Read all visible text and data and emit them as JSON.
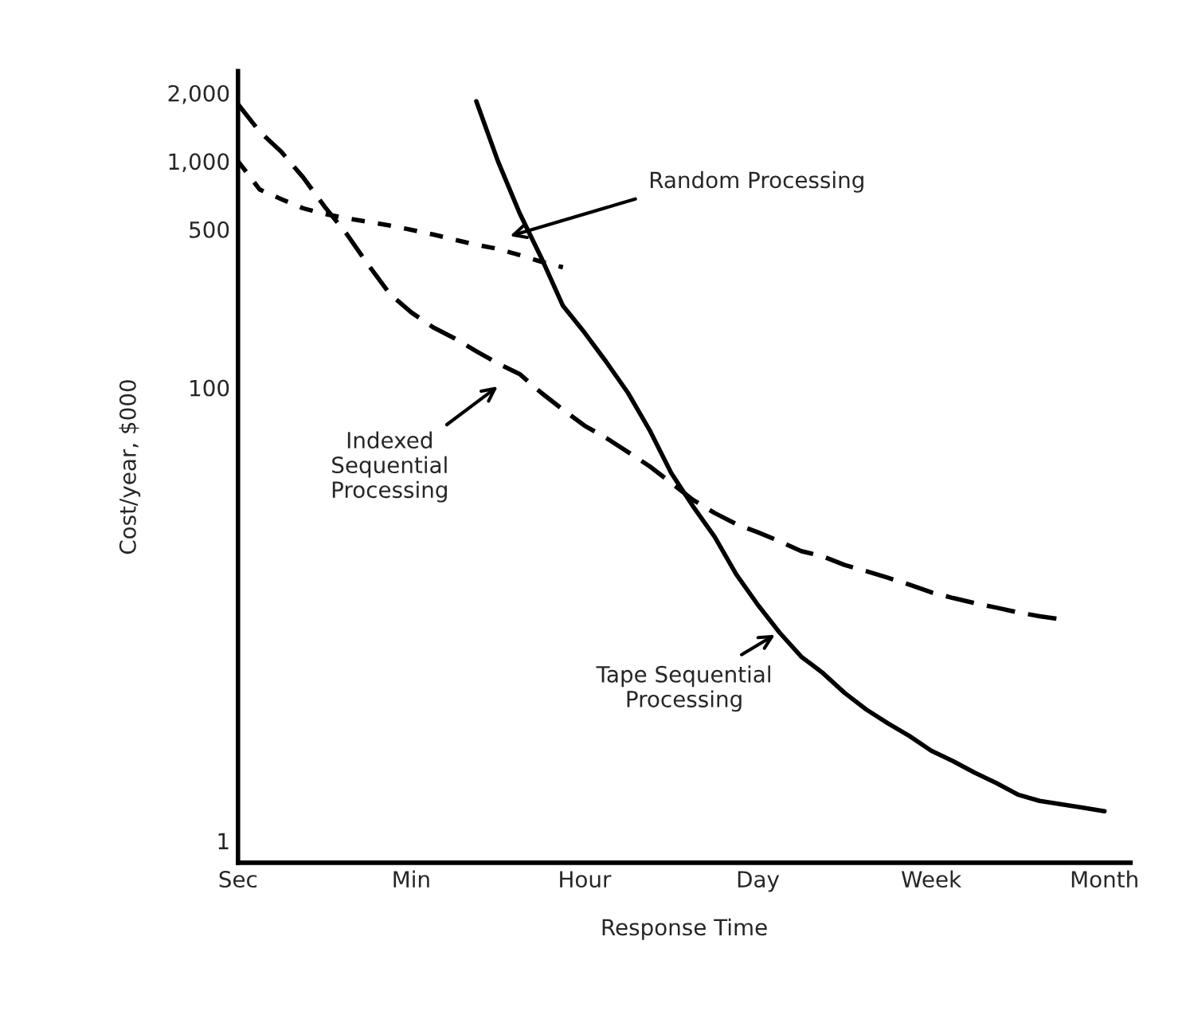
{
  "chart_data": {
    "type": "line",
    "xlabel": "Response Time",
    "ylabel": "Cost/year, $000",
    "log": "y",
    "grid": false,
    "marker": "none",
    "categories": [
      "Sec",
      null,
      null,
      null,
      null,
      null,
      null,
      null,
      "Min",
      null,
      null,
      null,
      null,
      null,
      null,
      null,
      "Hour",
      null,
      null,
      null,
      null,
      null,
      null,
      null,
      "Day",
      null,
      null,
      null,
      null,
      null,
      null,
      null,
      "Week",
      null,
      null,
      null,
      null,
      null,
      null,
      null,
      "Month"
    ],
    "ylim": [
      0.8,
      2500
    ],
    "yticks": [
      {
        "value": 1,
        "label": "1"
      },
      {
        "value": 100,
        "label": "100"
      },
      {
        "value": 500,
        "label": "500"
      },
      {
        "value": 1000,
        "label": "1,000"
      },
      {
        "value": 2000,
        "label": "2,000"
      }
    ],
    "series": [
      {
        "color": "#000000",
        "line_style": "solid",
        "values": [
          null,
          null,
          null,
          null,
          null,
          null,
          null,
          null,
          null,
          null,
          null,
          1840,
          1000,
          590,
          375,
          230,
          175,
          130,
          95,
          65,
          42,
          30,
          22,
          15,
          11,
          8.3,
          6.5,
          5.5,
          4.5,
          3.8,
          3.3,
          2.9,
          2.5,
          2.25,
          2.0,
          1.8,
          1.6,
          1.5,
          1.45,
          1.4,
          1.35
        ]
      },
      {
        "color": "#000000",
        "line_style": "dashed",
        "values": [
          1785,
          1350,
          1100,
          850,
          630,
          480,
          350,
          260,
          215,
          185,
          165,
          145,
          128,
          115,
          95,
          80,
          68,
          60,
          52,
          45,
          38,
          32,
          28,
          25,
          23,
          21,
          19,
          18,
          16.5,
          15.5,
          14.5,
          13.5,
          12.5,
          11.8,
          11.2,
          10.7,
          10.2,
          9.8,
          9.5,
          null,
          null
        ]
      },
      {
        "color": "#000000",
        "line_style": "dotted",
        "values": [
          1000,
          750,
          680,
          620,
          585,
          560,
          540,
          520,
          498,
          475,
          450,
          428,
          410,
          385,
          360,
          340,
          null,
          null,
          null,
          null,
          null,
          null,
          null,
          null,
          null,
          null,
          null,
          null,
          null,
          null,
          null,
          null,
          null,
          null,
          null,
          null,
          null,
          null,
          null,
          null,
          null
        ]
      }
    ],
    "annotations": [
      "Random Processing",
      "Indexed\nSequential\nProcessing",
      "Tape Sequential\nProcessing"
    ]
  }
}
